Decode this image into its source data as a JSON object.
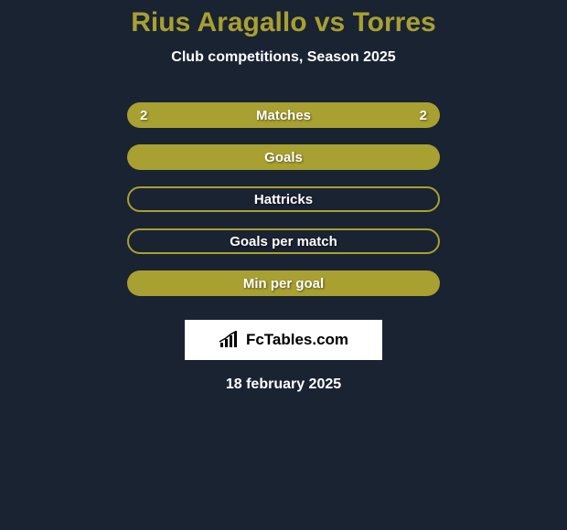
{
  "header": {
    "title": "Rius Aragallo vs Torres",
    "subtitle": "Club competitions, Season 2025"
  },
  "colors": {
    "background": "#1a2332",
    "accent": "#a8a030",
    "text_white": "#ffffff",
    "oval_white": "#ffffff"
  },
  "stats": [
    {
      "label": "Matches",
      "left_value": "2",
      "right_value": "2",
      "filled": true,
      "left_oval_color": "#ffffff",
      "right_oval_color": "#ffffff",
      "show_left_oval": true,
      "show_right_oval": true
    },
    {
      "label": "Goals",
      "left_value": "",
      "right_value": "",
      "filled": true,
      "left_oval_color": "#ffffff",
      "right_oval_color": "#ffffff",
      "show_left_oval": true,
      "show_right_oval": true
    },
    {
      "label": "Hattricks",
      "left_value": "",
      "right_value": "",
      "filled": false,
      "show_left_oval": false,
      "show_right_oval": false
    },
    {
      "label": "Goals per match",
      "left_value": "",
      "right_value": "",
      "filled": false,
      "show_left_oval": false,
      "show_right_oval": false
    },
    {
      "label": "Min per goal",
      "left_value": "",
      "right_value": "",
      "filled": true,
      "show_left_oval": false,
      "show_right_oval": false
    }
  ],
  "logo": {
    "text": "FcTables.com"
  },
  "footer": {
    "date": "18 february 2025"
  }
}
